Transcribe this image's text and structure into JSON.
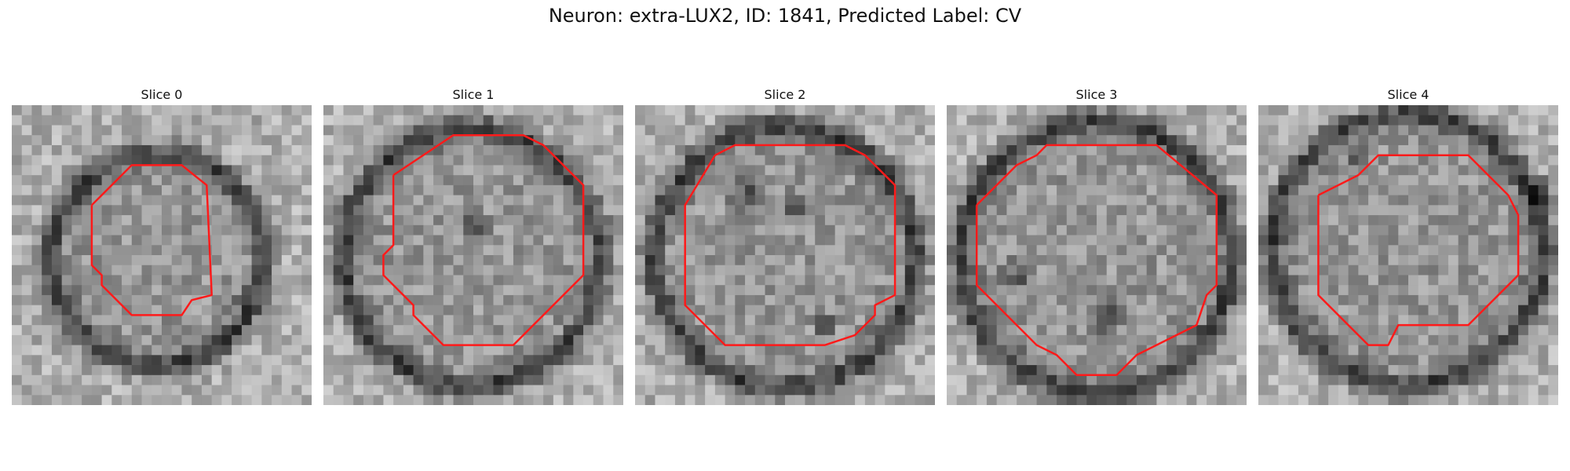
{
  "figure": {
    "title": "Neuron: extra-LUX2, ID: 1841, Predicted Label: CV"
  },
  "colors": {
    "contour": "#ff1a1a",
    "background": "#ffffff"
  },
  "panels": [
    {
      "title": "Slice 0"
    },
    {
      "title": "Slice 1"
    },
    {
      "title": "Slice 2"
    },
    {
      "title": "Slice 3"
    },
    {
      "title": "Slice 4"
    }
  ]
}
